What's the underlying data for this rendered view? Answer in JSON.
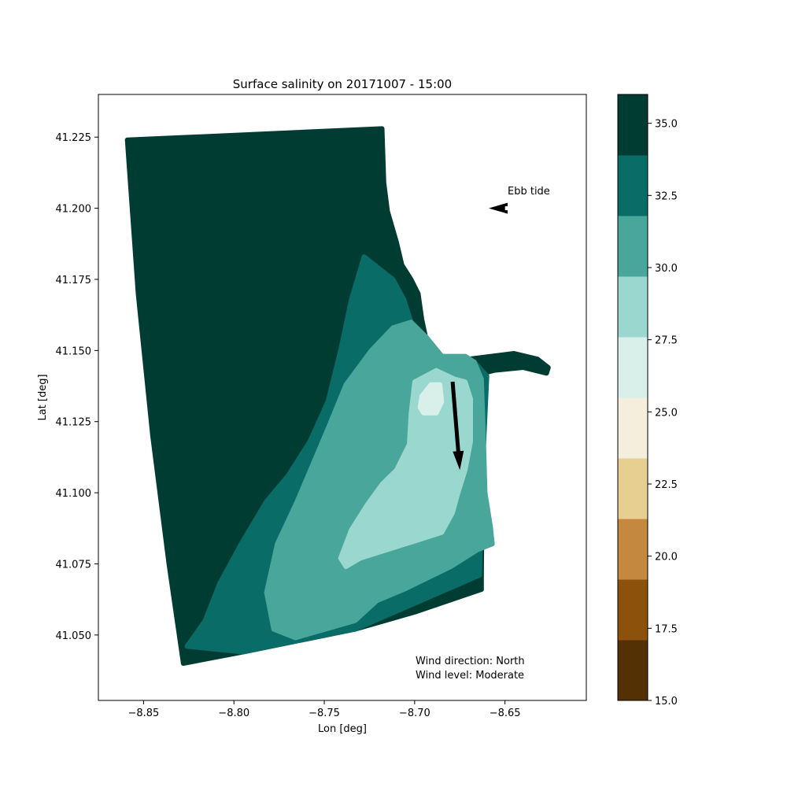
{
  "chart_data": {
    "type": "heatmap",
    "title": "Surface salinity on 20171007 - 15:00",
    "xlabel": "Lon [deg]",
    "ylabel": "Lat [deg]",
    "xlim": [
      -8.875,
      -8.605
    ],
    "ylim": [
      41.027,
      41.24
    ],
    "x_ticks": [
      -8.85,
      -8.8,
      -8.75,
      -8.7,
      -8.65
    ],
    "x_tick_labels": [
      "−8.85",
      "−8.80",
      "−8.75",
      "−8.70",
      "−8.65"
    ],
    "y_ticks": [
      41.05,
      41.075,
      41.1,
      41.125,
      41.15,
      41.175,
      41.2,
      41.225
    ],
    "y_tick_labels": [
      "41.050",
      "41.075",
      "41.100",
      "41.125",
      "41.150",
      "41.175",
      "41.200",
      "41.225"
    ],
    "grid": false,
    "colorbar": {
      "ticks": [
        15.0,
        17.5,
        20.0,
        22.5,
        25.0,
        27.5,
        30.0,
        32.5,
        35.0
      ],
      "tick_labels": [
        "15.0",
        "17.5",
        "20.0",
        "22.5",
        "25.0",
        "27.5",
        "30.0",
        "32.5",
        "35.0"
      ],
      "range": [
        15.0,
        36.0
      ],
      "bins": [
        {
          "min": 15.0,
          "max": 17.1,
          "color": "#543005"
        },
        {
          "min": 17.1,
          "max": 19.2,
          "color": "#8c510a"
        },
        {
          "min": 19.2,
          "max": 21.3,
          "color": "#c4883e"
        },
        {
          "min": 21.3,
          "max": 23.4,
          "color": "#e6cf91"
        },
        {
          "min": 23.4,
          "max": 25.5,
          "color": "#f5eedc"
        },
        {
          "min": 25.5,
          "max": 27.6,
          "color": "#d9efea"
        },
        {
          "min": 27.6,
          "max": 29.7,
          "color": "#9ad7ce"
        },
        {
          "min": 29.7,
          "max": 31.8,
          "color": "#48a69b"
        },
        {
          "min": 31.8,
          "max": 33.9,
          "color": "#096c66"
        },
        {
          "min": 33.9,
          "max": 36.0,
          "color": "#013c33"
        }
      ]
    },
    "regions": [
      {
        "salinity_bin": "33.9-36.0",
        "color": "#013c33",
        "polygon": [
          [
            -8.859,
            41.224
          ],
          [
            -8.718,
            41.228
          ],
          [
            -8.717,
            41.209
          ],
          [
            -8.715,
            41.199
          ],
          [
            -8.71,
            41.188
          ],
          [
            -8.707,
            41.18
          ],
          [
            -8.702,
            41.175
          ],
          [
            -8.698,
            41.17
          ],
          [
            -8.696,
            41.161
          ],
          [
            -8.694,
            41.155
          ],
          [
            -8.685,
            41.148
          ],
          [
            -8.67,
            41.147
          ],
          [
            -8.645,
            41.149
          ],
          [
            -8.632,
            41.147
          ],
          [
            -8.626,
            41.144
          ],
          [
            -8.627,
            41.142
          ],
          [
            -8.64,
            41.144
          ],
          [
            -8.656,
            41.143
          ],
          [
            -8.662,
            41.142
          ],
          [
            -8.663,
            41.07
          ],
          [
            -8.663,
            41.066
          ],
          [
            -8.7,
            41.058
          ],
          [
            -8.733,
            41.052
          ],
          [
            -8.795,
            41.044
          ],
          [
            -8.828,
            41.04
          ],
          [
            -8.836,
            41.075
          ],
          [
            -8.845,
            41.12
          ],
          [
            -8.853,
            41.17
          ]
        ]
      },
      {
        "salinity_bin": "31.8-33.9",
        "color": "#096c66",
        "polygon": [
          [
            -8.728,
            41.183
          ],
          [
            -8.722,
            41.18
          ],
          [
            -8.712,
            41.175
          ],
          [
            -8.706,
            41.168
          ],
          [
            -8.702,
            41.16
          ],
          [
            -8.694,
            41.155
          ],
          [
            -8.685,
            41.148
          ],
          [
            -8.675,
            41.147
          ],
          [
            -8.667,
            41.146
          ],
          [
            -8.66,
            41.141
          ],
          [
            -8.663,
            41.1
          ],
          [
            -8.664,
            41.071
          ],
          [
            -8.733,
            41.052
          ],
          [
            -8.795,
            41.044
          ],
          [
            -8.826,
            41.046
          ],
          [
            -8.816,
            41.055
          ],
          [
            -8.808,
            41.068
          ],
          [
            -8.796,
            41.082
          ],
          [
            -8.782,
            41.097
          ],
          [
            -8.77,
            41.106
          ],
          [
            -8.758,
            41.118
          ],
          [
            -8.748,
            41.132
          ],
          [
            -8.741,
            41.15
          ],
          [
            -8.735,
            41.168
          ]
        ]
      },
      {
        "salinity_bin": "29.7-31.8",
        "color": "#48a69b",
        "polygon": [
          [
            -8.724,
            41.15
          ],
          [
            -8.718,
            41.154
          ],
          [
            -8.712,
            41.158
          ],
          [
            -8.702,
            41.16
          ],
          [
            -8.694,
            41.155
          ],
          [
            -8.685,
            41.148
          ],
          [
            -8.672,
            41.148
          ],
          [
            -8.667,
            41.146
          ],
          [
            -8.663,
            41.14
          ],
          [
            -8.662,
            41.122
          ],
          [
            -8.661,
            41.1
          ],
          [
            -8.658,
            41.088
          ],
          [
            -8.657,
            41.082
          ],
          [
            -8.665,
            41.08
          ],
          [
            -8.68,
            41.074
          ],
          [
            -8.706,
            41.066
          ],
          [
            -8.721,
            41.062
          ],
          [
            -8.733,
            41.055
          ],
          [
            -8.766,
            41.049
          ],
          [
            -8.778,
            41.052
          ],
          [
            -8.782,
            41.065
          ],
          [
            -8.776,
            41.082
          ],
          [
            -8.765,
            41.097
          ],
          [
            -8.755,
            41.112
          ],
          [
            -8.747,
            41.124
          ],
          [
            -8.738,
            41.138
          ]
        ]
      },
      {
        "salinity_bin": "27.6-29.7",
        "color": "#9ad7ce",
        "polygon": [
          [
            -8.7,
            41.139
          ],
          [
            -8.688,
            41.143
          ],
          [
            -8.678,
            41.14
          ],
          [
            -8.672,
            41.139
          ],
          [
            -8.669,
            41.133
          ],
          [
            -8.669,
            41.118
          ],
          [
            -8.672,
            41.108
          ],
          [
            -8.676,
            41.1
          ],
          [
            -8.679,
            41.093
          ],
          [
            -8.685,
            41.086
          ],
          [
            -8.7,
            41.083
          ],
          [
            -8.73,
            41.077
          ],
          [
            -8.738,
            41.074
          ],
          [
            -8.741,
            41.077
          ],
          [
            -8.735,
            41.087
          ],
          [
            -8.726,
            41.096
          ],
          [
            -8.718,
            41.103
          ],
          [
            -8.71,
            41.108
          ],
          [
            -8.703,
            41.117
          ],
          [
            -8.702,
            41.128
          ]
        ]
      },
      {
        "salinity_bin": "25.5-27.6",
        "color": "#d9efea",
        "polygon": [
          [
            -8.696,
            41.134
          ],
          [
            -8.691,
            41.138
          ],
          [
            -8.686,
            41.138
          ],
          [
            -8.685,
            41.132
          ],
          [
            -8.688,
            41.128
          ],
          [
            -8.695,
            41.128
          ],
          [
            -8.697,
            41.13
          ]
        ]
      }
    ],
    "annotations": [
      {
        "text": "Ebb tide",
        "arrow": {
          "from": [
            -8.65,
            41.2
          ],
          "to": [
            -8.659,
            41.2
          ]
        }
      },
      {
        "text": "",
        "arrow": {
          "from": [
            -8.679,
            41.139
          ],
          "to": [
            -8.675,
            41.108
          ]
        }
      },
      {
        "text": "Wind direction: North"
      },
      {
        "text": "Wind level: Moderate"
      }
    ]
  }
}
